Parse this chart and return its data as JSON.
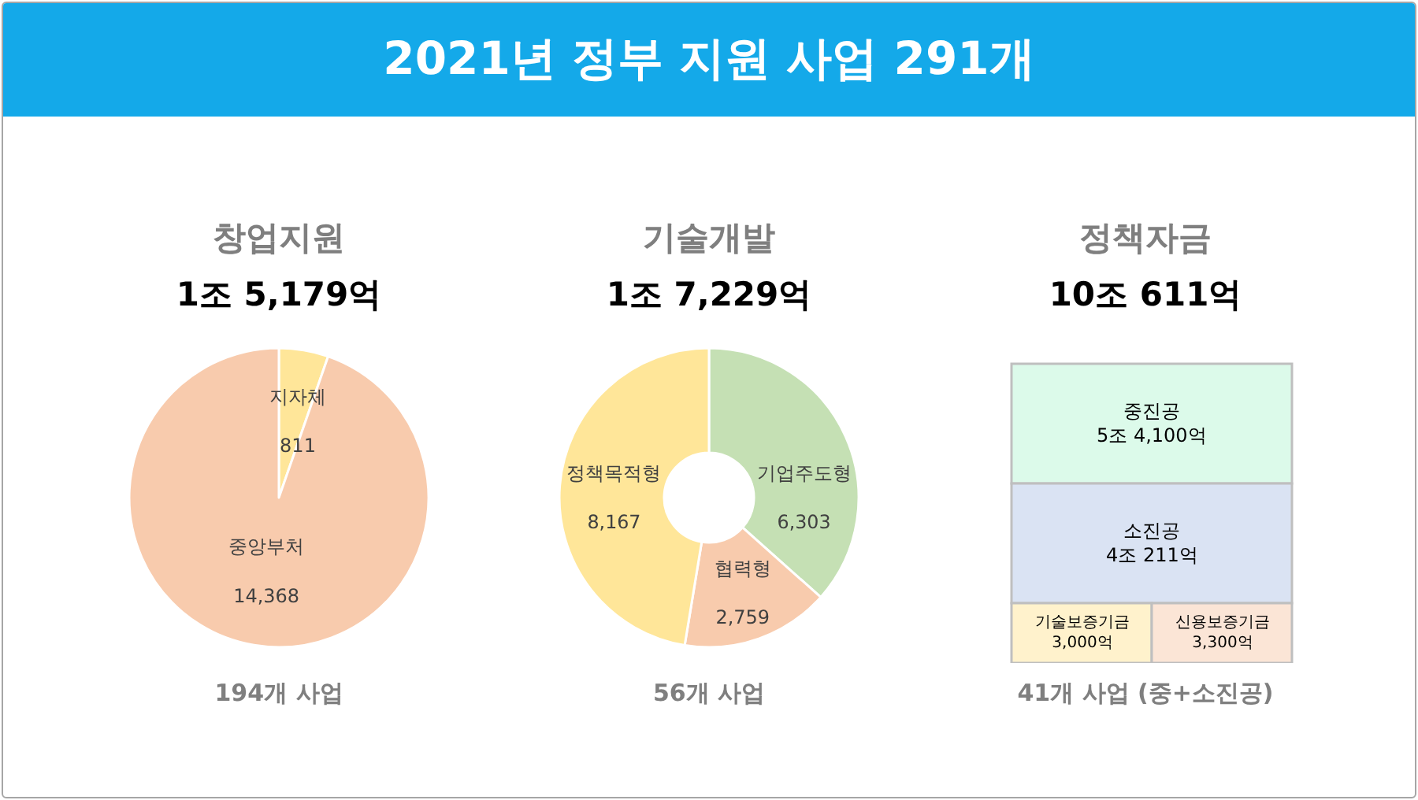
{
  "chart_data": [
    {
      "type": "other",
      "title": "2021년 정부 지원 사업 291개"
    },
    {
      "type": "pie",
      "title": "창업지원",
      "subtitle": "1조 5,179억",
      "categories": [
        "지자체",
        "중앙부처"
      ],
      "values": [
        811,
        14368
      ],
      "value_labels": [
        "811",
        "14,368"
      ],
      "colors": [
        "#ffe699",
        "#f8cbad"
      ],
      "annotations": [
        "194개 사업"
      ]
    },
    {
      "type": "donut",
      "title": "기술개발",
      "subtitle": "1조 7,229억",
      "categories": [
        "기업주도형",
        "협력형",
        "정책목적형"
      ],
      "values": [
        6303,
        2759,
        8167
      ],
      "value_labels": [
        "6,303",
        "2,759",
        "8,167"
      ],
      "colors": [
        "#c5e0b4",
        "#f8cbad",
        "#ffe699"
      ],
      "annotations": [
        "56개 사업"
      ]
    },
    {
      "type": "other",
      "title": "정책자금",
      "subtitle": "10조 611억",
      "categories": [
        "중진공",
        "소진공",
        "기술보증기금",
        "신용보증기금"
      ],
      "value_labels": [
        "5조 4,100억",
        "4조 211억",
        "3,000억",
        "3,300억"
      ],
      "colors": [
        "#dcfaea",
        "#dae3f3",
        "#fff2cc",
        "#fbe5d6"
      ],
      "annotations": [
        "41개 사업 (중+소진공)"
      ]
    }
  ]
}
